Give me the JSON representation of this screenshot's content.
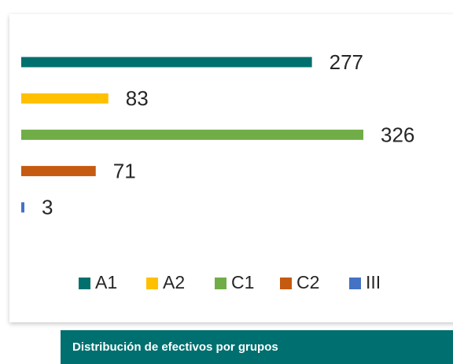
{
  "chart_data": {
    "type": "bar",
    "orientation": "horizontal",
    "categories": [
      "A1",
      "A2",
      "C1",
      "C2",
      "III"
    ],
    "values": [
      277,
      83,
      326,
      71,
      3
    ],
    "colors": [
      "#00706f",
      "#ffc000",
      "#70ad47",
      "#c55a11",
      "#4472c4"
    ],
    "legend": "bottom"
  },
  "footer": {
    "caption": "Distribución de efectivos por grupos"
  }
}
